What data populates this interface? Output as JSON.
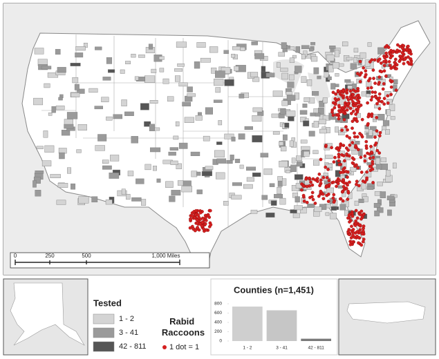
{
  "scale_bar": {
    "ticks": [
      "0",
      "250",
      "500",
      "1,000 Miles"
    ]
  },
  "legend": {
    "title": "Tested",
    "classes": [
      "1 - 2",
      "3 - 41",
      "42 - 811"
    ],
    "class_colors": [
      "#d4d4d4",
      "#9a9a9a",
      "#555555"
    ],
    "dot_title": "Rabid Raccoons",
    "dot_label": "1 dot = 1",
    "dot_color": "#d42020"
  },
  "chart_data": {
    "type": "bar",
    "title": "Counties (n=1,451)",
    "categories": [
      "1 - 2",
      "3 - 41",
      "42 - 811"
    ],
    "values": [
      740,
      660,
      50
    ],
    "colors": [
      "#cfcfcf",
      "#c6c6c6",
      "#7a7a7a"
    ],
    "ylim": [
      0,
      800
    ],
    "yticks": [
      0,
      200,
      400,
      600,
      800
    ],
    "grid": false
  }
}
